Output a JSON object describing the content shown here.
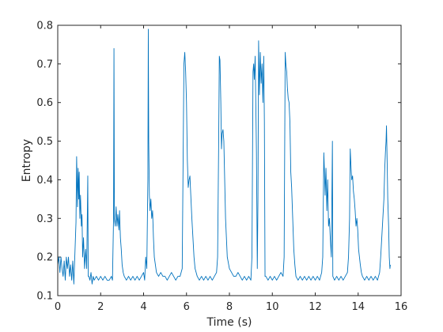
{
  "chart_data": {
    "type": "line",
    "title": "",
    "xlabel": "Time (s)",
    "ylabel": "Entropy",
    "xlim": [
      0,
      16
    ],
    "ylim": [
      0.1,
      0.8
    ],
    "xticks": [
      0,
      2,
      4,
      6,
      8,
      10,
      12,
      14,
      16
    ],
    "yticks": [
      0.1,
      0.2,
      0.3,
      0.4,
      0.5,
      0.6,
      0.7,
      0.8
    ],
    "grid": false,
    "legend": "none",
    "series": [
      {
        "color": "#0072BD",
        "points": [
          [
            0.0,
            0.18
          ],
          [
            0.05,
            0.2
          ],
          [
            0.1,
            0.16
          ],
          [
            0.15,
            0.2
          ],
          [
            0.2,
            0.17
          ],
          [
            0.25,
            0.15
          ],
          [
            0.3,
            0.19
          ],
          [
            0.35,
            0.14
          ],
          [
            0.4,
            0.2
          ],
          [
            0.45,
            0.17
          ],
          [
            0.5,
            0.2
          ],
          [
            0.55,
            0.15
          ],
          [
            0.6,
            0.18
          ],
          [
            0.65,
            0.14
          ],
          [
            0.7,
            0.19
          ],
          [
            0.75,
            0.13
          ],
          [
            0.8,
            0.21
          ],
          [
            0.85,
            0.29
          ],
          [
            0.88,
            0.46
          ],
          [
            0.92,
            0.33
          ],
          [
            0.95,
            0.43
          ],
          [
            0.98,
            0.35
          ],
          [
            1.0,
            0.42
          ],
          [
            1.03,
            0.3
          ],
          [
            1.06,
            0.36
          ],
          [
            1.1,
            0.28
          ],
          [
            1.13,
            0.31
          ],
          [
            1.16,
            0.2
          ],
          [
            1.2,
            0.25
          ],
          [
            1.25,
            0.17
          ],
          [
            1.3,
            0.22
          ],
          [
            1.35,
            0.17
          ],
          [
            1.4,
            0.41
          ],
          [
            1.42,
            0.15
          ],
          [
            1.45,
            0.15
          ],
          [
            1.5,
            0.14
          ],
          [
            1.55,
            0.16
          ],
          [
            1.6,
            0.13
          ],
          [
            1.65,
            0.15
          ],
          [
            1.7,
            0.14
          ],
          [
            1.8,
            0.15
          ],
          [
            1.9,
            0.14
          ],
          [
            2.0,
            0.15
          ],
          [
            2.1,
            0.14
          ],
          [
            2.2,
            0.15
          ],
          [
            2.3,
            0.14
          ],
          [
            2.4,
            0.14
          ],
          [
            2.5,
            0.15
          ],
          [
            2.55,
            0.14
          ],
          [
            2.6,
            0.3
          ],
          [
            2.62,
            0.74
          ],
          [
            2.64,
            0.3
          ],
          [
            2.68,
            0.28
          ],
          [
            2.72,
            0.33
          ],
          [
            2.76,
            0.28
          ],
          [
            2.8,
            0.31
          ],
          [
            2.85,
            0.27
          ],
          [
            2.88,
            0.32
          ],
          [
            2.92,
            0.25
          ],
          [
            2.96,
            0.22
          ],
          [
            3.0,
            0.18
          ],
          [
            3.05,
            0.16
          ],
          [
            3.1,
            0.15
          ],
          [
            3.2,
            0.14
          ],
          [
            3.3,
            0.15
          ],
          [
            3.4,
            0.14
          ],
          [
            3.5,
            0.15
          ],
          [
            3.6,
            0.14
          ],
          [
            3.7,
            0.15
          ],
          [
            3.8,
            0.14
          ],
          [
            3.9,
            0.15
          ],
          [
            4.0,
            0.16
          ],
          [
            4.05,
            0.14
          ],
          [
            4.1,
            0.2
          ],
          [
            4.15,
            0.17
          ],
          [
            4.2,
            0.4
          ],
          [
            4.22,
            0.79
          ],
          [
            4.24,
            0.5
          ],
          [
            4.27,
            0.36
          ],
          [
            4.3,
            0.32
          ],
          [
            4.34,
            0.35
          ],
          [
            4.38,
            0.3
          ],
          [
            4.42,
            0.32
          ],
          [
            4.46,
            0.25
          ],
          [
            4.5,
            0.2
          ],
          [
            4.55,
            0.18
          ],
          [
            4.6,
            0.16
          ],
          [
            4.7,
            0.15
          ],
          [
            4.8,
            0.16
          ],
          [
            4.9,
            0.15
          ],
          [
            5.0,
            0.15
          ],
          [
            5.1,
            0.14
          ],
          [
            5.2,
            0.15
          ],
          [
            5.3,
            0.16
          ],
          [
            5.4,
            0.15
          ],
          [
            5.5,
            0.14
          ],
          [
            5.6,
            0.15
          ],
          [
            5.7,
            0.15
          ],
          [
            5.8,
            0.17
          ],
          [
            5.85,
            0.5
          ],
          [
            5.88,
            0.7
          ],
          [
            5.92,
            0.73
          ],
          [
            5.96,
            0.68
          ],
          [
            6.0,
            0.6
          ],
          [
            6.04,
            0.45
          ],
          [
            6.08,
            0.38
          ],
          [
            6.12,
            0.4
          ],
          [
            6.16,
            0.41
          ],
          [
            6.2,
            0.36
          ],
          [
            6.25,
            0.3
          ],
          [
            6.3,
            0.25
          ],
          [
            6.35,
            0.2
          ],
          [
            6.4,
            0.17
          ],
          [
            6.5,
            0.15
          ],
          [
            6.6,
            0.14
          ],
          [
            6.7,
            0.15
          ],
          [
            6.8,
            0.14
          ],
          [
            6.9,
            0.15
          ],
          [
            7.0,
            0.14
          ],
          [
            7.1,
            0.15
          ],
          [
            7.2,
            0.14
          ],
          [
            7.3,
            0.15
          ],
          [
            7.4,
            0.16
          ],
          [
            7.45,
            0.2
          ],
          [
            7.5,
            0.5
          ],
          [
            7.53,
            0.72
          ],
          [
            7.56,
            0.71
          ],
          [
            7.6,
            0.6
          ],
          [
            7.63,
            0.48
          ],
          [
            7.66,
            0.52
          ],
          [
            7.7,
            0.53
          ],
          [
            7.74,
            0.5
          ],
          [
            7.78,
            0.4
          ],
          [
            7.82,
            0.3
          ],
          [
            7.86,
            0.25
          ],
          [
            7.9,
            0.2
          ],
          [
            8.0,
            0.17
          ],
          [
            8.1,
            0.16
          ],
          [
            8.2,
            0.15
          ],
          [
            8.3,
            0.15
          ],
          [
            8.4,
            0.16
          ],
          [
            8.5,
            0.15
          ],
          [
            8.6,
            0.14
          ],
          [
            8.7,
            0.15
          ],
          [
            8.8,
            0.14
          ],
          [
            8.9,
            0.15
          ],
          [
            9.0,
            0.14
          ],
          [
            9.05,
            0.2
          ],
          [
            9.1,
            0.68
          ],
          [
            9.13,
            0.7
          ],
          [
            9.16,
            0.66
          ],
          [
            9.2,
            0.72
          ],
          [
            9.23,
            0.6
          ],
          [
            9.26,
            0.47
          ],
          [
            9.3,
            0.17
          ],
          [
            9.33,
            0.35
          ],
          [
            9.36,
            0.76
          ],
          [
            9.4,
            0.62
          ],
          [
            9.44,
            0.73
          ],
          [
            9.48,
            0.65
          ],
          [
            9.52,
            0.7
          ],
          [
            9.56,
            0.6
          ],
          [
            9.6,
            0.72
          ],
          [
            9.63,
            0.55
          ],
          [
            9.66,
            0.15
          ],
          [
            9.7,
            0.15
          ],
          [
            9.8,
            0.14
          ],
          [
            9.9,
            0.15
          ],
          [
            10.0,
            0.14
          ],
          [
            10.1,
            0.15
          ],
          [
            10.2,
            0.14
          ],
          [
            10.3,
            0.15
          ],
          [
            10.4,
            0.16
          ],
          [
            10.5,
            0.15
          ],
          [
            10.55,
            0.2
          ],
          [
            10.6,
            0.73
          ],
          [
            10.63,
            0.7
          ],
          [
            10.67,
            0.68
          ],
          [
            10.7,
            0.64
          ],
          [
            10.74,
            0.61
          ],
          [
            10.78,
            0.6
          ],
          [
            10.82,
            0.55
          ],
          [
            10.86,
            0.42
          ],
          [
            10.9,
            0.38
          ],
          [
            10.95,
            0.3
          ],
          [
            11.0,
            0.22
          ],
          [
            11.05,
            0.18
          ],
          [
            11.1,
            0.15
          ],
          [
            11.2,
            0.14
          ],
          [
            11.3,
            0.15
          ],
          [
            11.4,
            0.14
          ],
          [
            11.5,
            0.15
          ],
          [
            11.6,
            0.14
          ],
          [
            11.7,
            0.15
          ],
          [
            11.8,
            0.14
          ],
          [
            11.9,
            0.15
          ],
          [
            12.0,
            0.14
          ],
          [
            12.1,
            0.15
          ],
          [
            12.2,
            0.14
          ],
          [
            12.3,
            0.16
          ],
          [
            12.35,
            0.2
          ],
          [
            12.4,
            0.47
          ],
          [
            12.43,
            0.42
          ],
          [
            12.46,
            0.36
          ],
          [
            12.5,
            0.43
          ],
          [
            12.54,
            0.32
          ],
          [
            12.58,
            0.4
          ],
          [
            12.62,
            0.28
          ],
          [
            12.66,
            0.3
          ],
          [
            12.7,
            0.25
          ],
          [
            12.75,
            0.2
          ],
          [
            12.8,
            0.5
          ],
          [
            12.82,
            0.15
          ],
          [
            12.9,
            0.14
          ],
          [
            13.0,
            0.15
          ],
          [
            13.1,
            0.14
          ],
          [
            13.2,
            0.15
          ],
          [
            13.3,
            0.14
          ],
          [
            13.4,
            0.15
          ],
          [
            13.5,
            0.16
          ],
          [
            13.55,
            0.2
          ],
          [
            13.6,
            0.3
          ],
          [
            13.63,
            0.48
          ],
          [
            13.67,
            0.43
          ],
          [
            13.7,
            0.4
          ],
          [
            13.74,
            0.41
          ],
          [
            13.78,
            0.37
          ],
          [
            13.82,
            0.35
          ],
          [
            13.86,
            0.32
          ],
          [
            13.9,
            0.28
          ],
          [
            13.94,
            0.3
          ],
          [
            13.98,
            0.27
          ],
          [
            14.02,
            0.22
          ],
          [
            14.06,
            0.2
          ],
          [
            14.1,
            0.18
          ],
          [
            14.15,
            0.16
          ],
          [
            14.2,
            0.15
          ],
          [
            14.3,
            0.14
          ],
          [
            14.4,
            0.15
          ],
          [
            14.5,
            0.14
          ],
          [
            14.6,
            0.15
          ],
          [
            14.7,
            0.14
          ],
          [
            14.8,
            0.15
          ],
          [
            14.9,
            0.14
          ],
          [
            15.0,
            0.16
          ],
          [
            15.05,
            0.2
          ],
          [
            15.1,
            0.25
          ],
          [
            15.15,
            0.3
          ],
          [
            15.2,
            0.35
          ],
          [
            15.24,
            0.43
          ],
          [
            15.27,
            0.47
          ],
          [
            15.3,
            0.5
          ],
          [
            15.32,
            0.54
          ],
          [
            15.35,
            0.45
          ],
          [
            15.38,
            0.35
          ],
          [
            15.42,
            0.28
          ],
          [
            15.45,
            0.2
          ],
          [
            15.48,
            0.17
          ],
          [
            15.5,
            0.18
          ]
        ]
      }
    ]
  }
}
